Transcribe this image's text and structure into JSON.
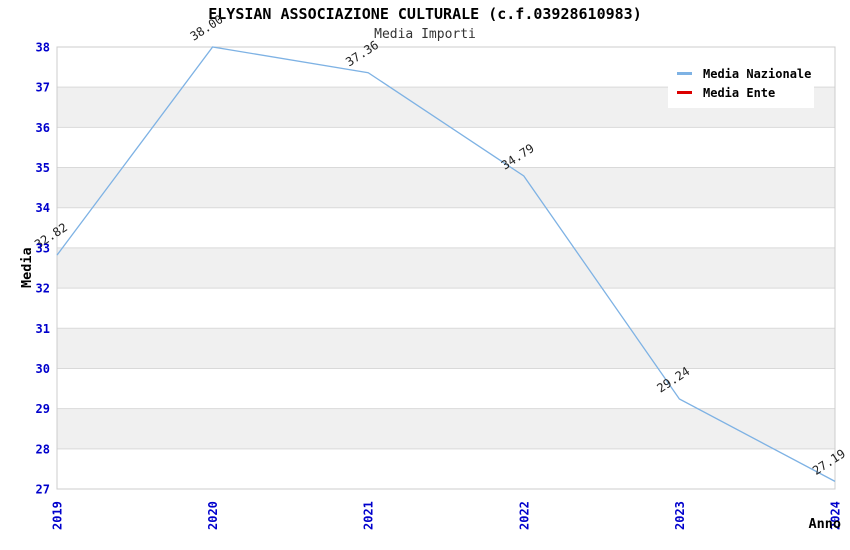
{
  "window": {
    "background": "#ffffff"
  },
  "header": {
    "title": "ELYSIAN ASSOCIAZIONE CULTURALE (c.f.03928610983)",
    "subtitle": "Media Importi"
  },
  "chart_data": {
    "type": "line",
    "title": "ELYSIAN ASSOCIAZIONE CULTURALE (c.f.03928610983)",
    "subtitle": "Media Importi",
    "xlabel": "Anno",
    "ylabel": "Media",
    "x": [
      2019,
      2020,
      2021,
      2022,
      2023,
      2024
    ],
    "series": [
      {
        "name": "Media Nazionale",
        "color": "#7EB2E4",
        "values": [
          32.82,
          38.0,
          37.36,
          34.79,
          29.24,
          27.19
        ]
      },
      {
        "name": "Media Ente",
        "color": "#DC0000",
        "values": []
      }
    ],
    "point_labels": [
      "32.82",
      "38.00",
      "37.36",
      "34.79",
      "29.24",
      "27.19"
    ],
    "ylim": [
      27,
      38
    ],
    "yticks": [
      27,
      28,
      29,
      30,
      31,
      32,
      33,
      34,
      35,
      36,
      37,
      38
    ],
    "grid": true,
    "band_colors": [
      "#ffffff",
      "#f0f0f0"
    ],
    "gridline_color": "#d9d9d9",
    "border_color": "#cccccc",
    "tick_label_color": "#0000cc",
    "legend_position": "top-right"
  }
}
